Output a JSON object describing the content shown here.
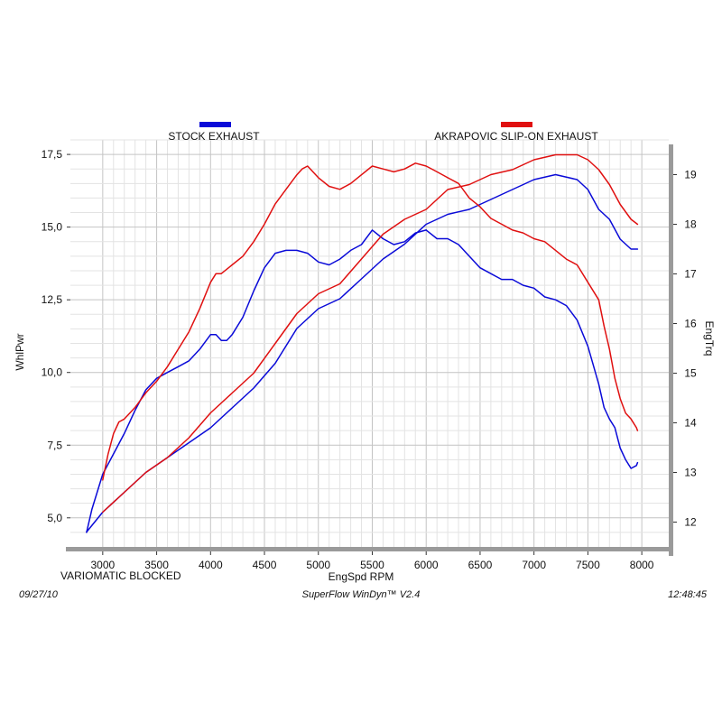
{
  "chart_data": {
    "type": "line",
    "xlabel": "EngSpd  RPM",
    "ylabel_left": "WhlPwr",
    "ylabel_right": "EngTrq",
    "note": "VARIOMATIC BLOCKED",
    "footer": {
      "date": "09/27/10",
      "software": "SuperFlow WinDyn™  V2.4",
      "time": "12:48:45"
    },
    "xlim": [
      2700,
      8250
    ],
    "ylim_left": [
      4.0,
      18.0
    ],
    "ylim_right": [
      11.5,
      19.7
    ],
    "grid": true,
    "x_ticks": [
      "3000",
      "3500",
      "4000",
      "4500",
      "5000",
      "5500",
      "6000",
      "6500",
      "7000",
      "7500",
      "8000"
    ],
    "x_tick_values": [
      3000,
      3500,
      4000,
      4500,
      5000,
      5500,
      6000,
      6500,
      7000,
      7500,
      8000
    ],
    "y_left_ticks": [
      "5,0",
      "7,5",
      "10,0",
      "12,5",
      "15,0",
      "17,5"
    ],
    "y_left_tick_values": [
      5.0,
      7.5,
      10.0,
      12.5,
      15.0,
      17.5
    ],
    "y_right_ticks": [
      "12",
      "13",
      "14",
      "15",
      "16",
      "17",
      "18",
      "19"
    ],
    "y_right_tick_values": [
      12,
      13,
      14,
      15,
      16,
      17,
      18,
      19
    ],
    "legend": [
      {
        "label": "STOCK EXHAUST",
        "color": "#0a0ad8"
      },
      {
        "label": "AKRAPOVIC SLIP-ON EXHAUST",
        "color": "#e01010"
      }
    ],
    "series": [
      {
        "name": "STOCK EXHAUST",
        "color": "#0a0ad8",
        "axis": "left",
        "measure": "WhlPwr",
        "x": [
          2850,
          2900,
          3000,
          3100,
          3200,
          3300,
          3400,
          3500,
          3600,
          3700,
          3800,
          3900,
          4000,
          4050,
          4100,
          4150,
          4200,
          4300,
          4400,
          4500,
          4600,
          4700,
          4800,
          4900,
          5000,
          5100,
          5200,
          5300,
          5400,
          5500,
          5600,
          5700,
          5800,
          5900,
          6000
        ],
        "y": [
          4.5,
          5.3,
          6.5,
          7.2,
          7.9,
          8.7,
          9.4,
          9.8,
          10.0,
          10.2,
          10.4,
          10.8,
          11.3,
          11.3,
          11.1,
          11.1,
          11.3,
          11.9,
          12.8,
          13.6,
          14.1,
          14.2,
          14.2,
          14.1,
          13.8,
          13.7,
          13.9,
          14.2,
          14.4,
          14.9,
          14.6,
          14.4,
          14.5,
          14.8,
          14.9
        ]
      },
      {
        "name": "AKRAPOVIC SLIP-ON EXHAUST",
        "color": "#e01010",
        "axis": "left",
        "measure": "WhlPwr",
        "x": [
          3000,
          3050,
          3100,
          3150,
          3200,
          3300,
          3400,
          3500,
          3600,
          3700,
          3800,
          3900,
          4000,
          4050,
          4100,
          4200,
          4300,
          4400,
          4500,
          4600,
          4700,
          4800,
          4850,
          4900,
          5000,
          5100,
          5200,
          5300,
          5400,
          5500,
          5600,
          5700,
          5800,
          5900,
          6000,
          6100,
          6200
        ],
        "y": [
          6.3,
          7.2,
          7.9,
          8.3,
          8.4,
          8.8,
          9.3,
          9.7,
          10.2,
          10.8,
          11.4,
          12.2,
          13.1,
          13.4,
          13.4,
          13.7,
          14.0,
          14.5,
          15.1,
          15.8,
          16.3,
          16.8,
          17.0,
          17.1,
          16.7,
          16.4,
          16.3,
          16.5,
          16.8,
          17.1,
          17.0,
          16.9,
          17.0,
          17.2,
          17.1,
          16.9,
          16.7
        ]
      },
      {
        "name": "STOCK EXHAUST",
        "color": "#0a0ad8",
        "axis": "right",
        "measure": "EngTrq",
        "x": [
          2850,
          3000,
          3200,
          3400,
          3600,
          3800,
          4000,
          4200,
          4400,
          4600,
          4800,
          5000,
          5200,
          5400,
          5600,
          5800,
          6000,
          6200,
          6400,
          6600,
          6800,
          7000,
          7200,
          7400,
          7500,
          7600,
          7700,
          7800,
          7900,
          7960
        ],
        "y": [
          11.8,
          12.2,
          12.6,
          13.0,
          13.3,
          13.6,
          13.9,
          14.3,
          14.7,
          15.2,
          15.9,
          16.3,
          16.5,
          16.9,
          17.3,
          17.6,
          18.0,
          18.2,
          18.3,
          18.5,
          18.7,
          18.9,
          19.0,
          18.9,
          18.7,
          18.3,
          18.1,
          17.7,
          17.5,
          17.5
        ]
      },
      {
        "name": "AKRAPOVIC SLIP-ON EXHAUST",
        "color": "#e01010",
        "axis": "right",
        "measure": "EngTrq",
        "x": [
          3000,
          3200,
          3400,
          3600,
          3800,
          4000,
          4200,
          4400,
          4600,
          4800,
          5000,
          5200,
          5400,
          5600,
          5800,
          6000,
          6200,
          6400,
          6600,
          6800,
          7000,
          7200,
          7400,
          7500,
          7600,
          7700,
          7800,
          7900,
          7960
        ],
        "y": [
          12.2,
          12.6,
          13.0,
          13.3,
          13.7,
          14.2,
          14.6,
          15.0,
          15.6,
          16.2,
          16.6,
          16.8,
          17.3,
          17.8,
          18.1,
          18.3,
          18.7,
          18.8,
          19.0,
          19.1,
          19.3,
          19.4,
          19.4,
          19.3,
          19.1,
          18.8,
          18.4,
          18.1,
          18.0
        ]
      },
      {
        "name": "STOCK EXHAUST",
        "color": "#0a0ad8",
        "axis": "left",
        "measure": "WhlPwr",
        "x": [
          6000,
          6100,
          6200,
          6300,
          6400,
          6500,
          6600,
          6700,
          6800,
          6900,
          7000,
          7100,
          7200,
          7300,
          7400,
          7500,
          7600,
          7650,
          7700,
          7750,
          7800,
          7850,
          7900,
          7950,
          7960
        ],
        "y": [
          14.9,
          14.6,
          14.6,
          14.4,
          14.0,
          13.6,
          13.4,
          13.2,
          13.2,
          13.0,
          12.9,
          12.6,
          12.5,
          12.3,
          11.8,
          10.9,
          9.6,
          8.8,
          8.4,
          8.1,
          7.4,
          7.0,
          6.7,
          6.8,
          6.9
        ]
      },
      {
        "name": "AKRAPOVIC SLIP-ON EXHAUST",
        "color": "#e01010",
        "axis": "left",
        "measure": "WhlPwr",
        "x": [
          6200,
          6300,
          6400,
          6500,
          6600,
          6700,
          6800,
          6900,
          7000,
          7100,
          7200,
          7300,
          7400,
          7500,
          7600,
          7650,
          7700,
          7750,
          7800,
          7850,
          7900,
          7950,
          7960
        ],
        "y": [
          16.7,
          16.5,
          16.0,
          15.7,
          15.3,
          15.1,
          14.9,
          14.8,
          14.6,
          14.5,
          14.2,
          13.9,
          13.7,
          13.1,
          12.5,
          11.6,
          10.8,
          9.8,
          9.1,
          8.6,
          8.4,
          8.1,
          8.0
        ]
      }
    ]
  }
}
